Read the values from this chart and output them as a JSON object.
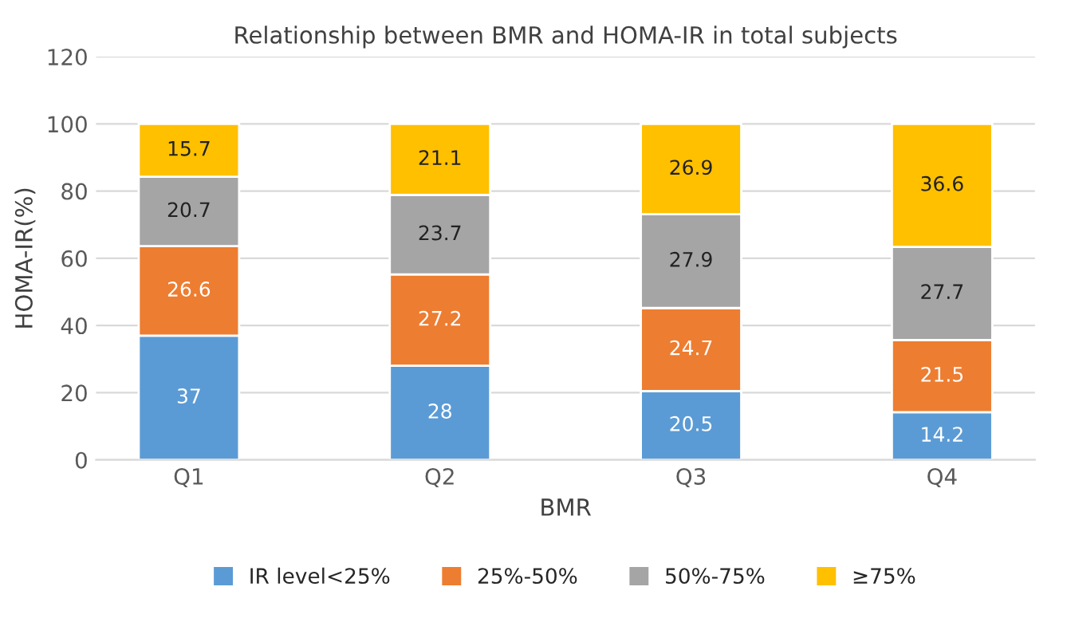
{
  "chart_data": {
    "type": "bar",
    "title": "Relationship between BMR and HOMA-IR in total subjects",
    "xlabel": "BMR",
    "ylabel": "HOMA-IR(%)",
    "categories": [
      "Q1",
      "Q2",
      "Q3",
      "Q4"
    ],
    "stacked": true,
    "series": [
      {
        "name": "IR level<25%",
        "color": "#5b9bd5",
        "values": [
          37,
          28,
          20.5,
          14.2
        ]
      },
      {
        "name": "25%-50%",
        "color": "#ed7d31",
        "values": [
          26.6,
          27.2,
          24.7,
          21.5
        ]
      },
      {
        "name": "50%-75%",
        "color": "#a5a5a5",
        "values": [
          20.7,
          23.7,
          27.9,
          27.7
        ]
      },
      {
        "name": "≥75%",
        "color": "#ffc000",
        "values": [
          15.7,
          21.1,
          26.9,
          36.6
        ]
      }
    ],
    "ylim": [
      0,
      120
    ],
    "yticks": [
      0,
      20,
      40,
      60,
      80,
      100,
      120
    ],
    "grid": "y",
    "legend": "bottom",
    "data_labels": true
  }
}
